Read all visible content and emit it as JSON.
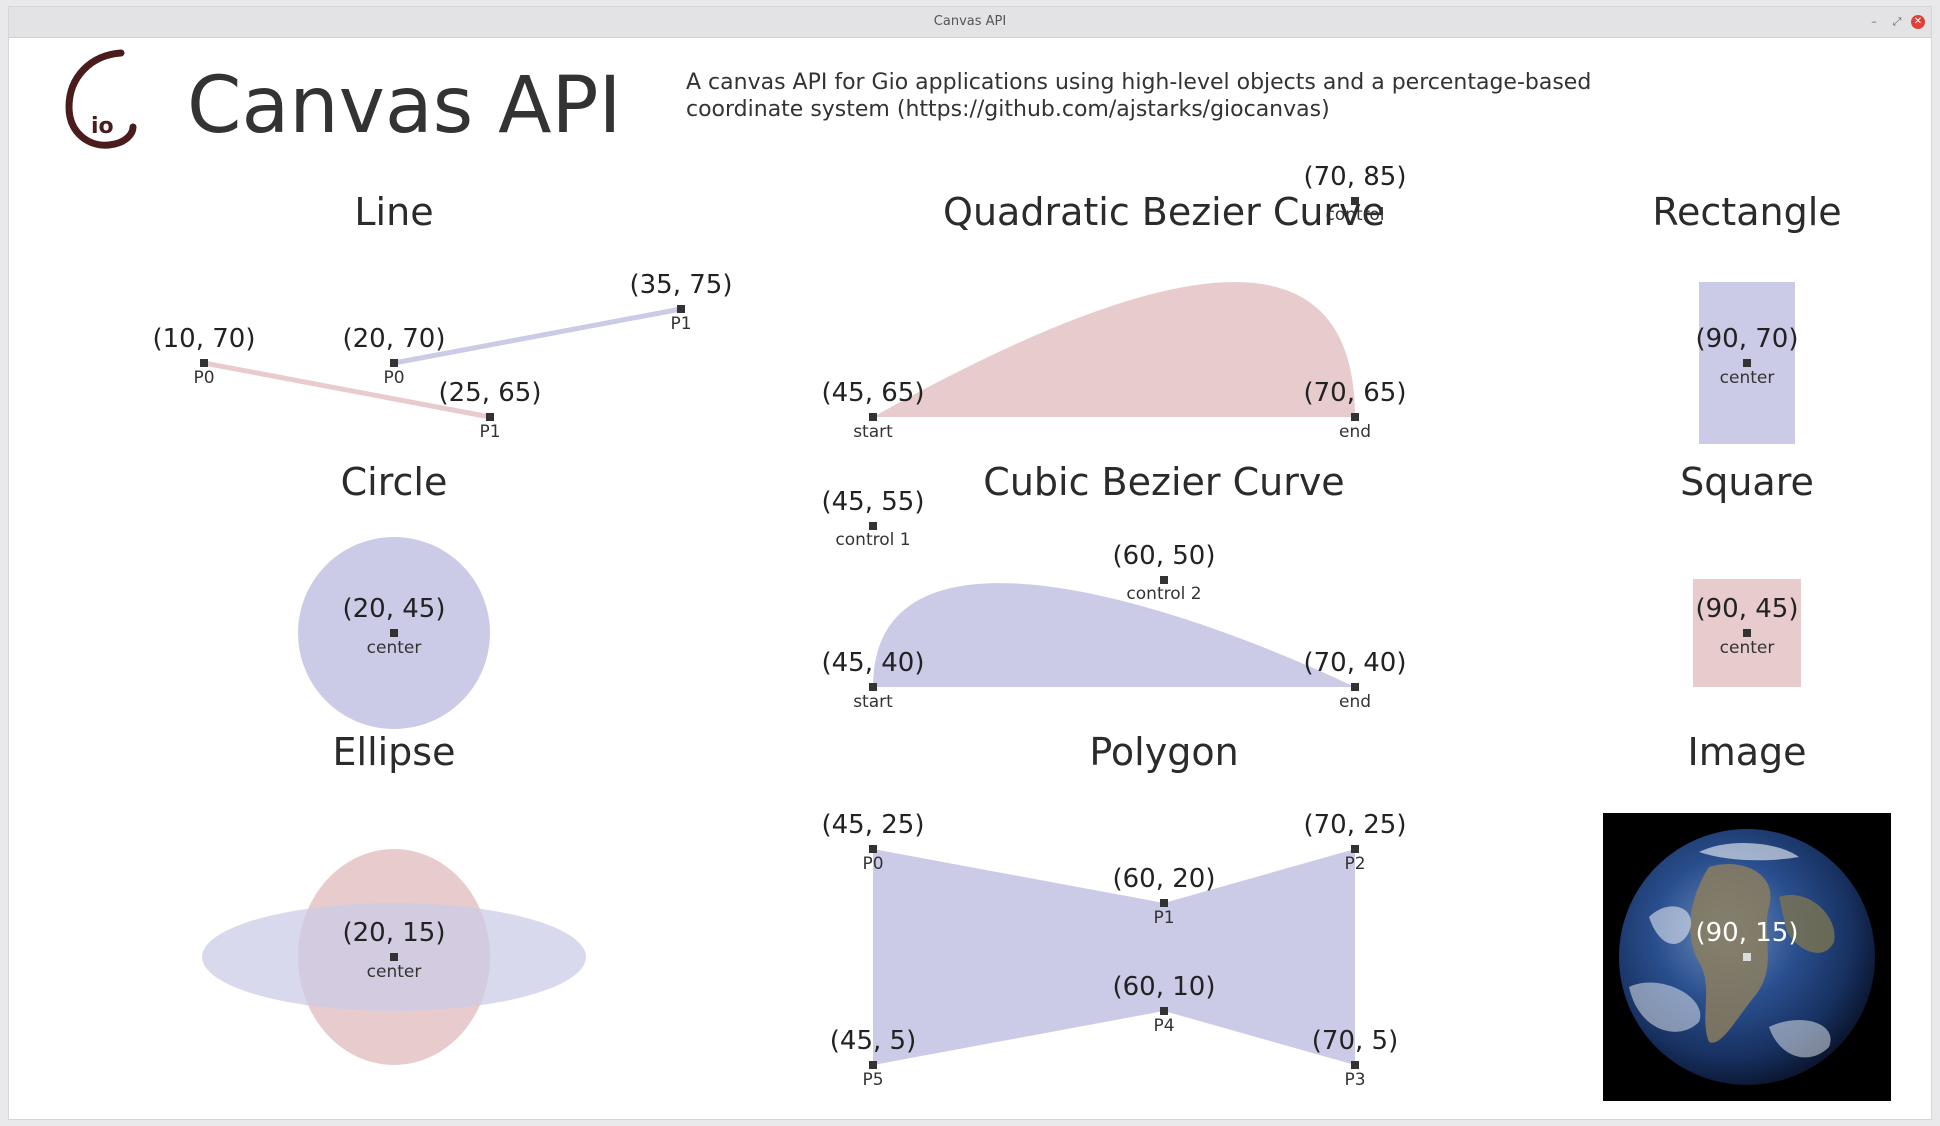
{
  "window": {
    "title": "Canvas API",
    "controls": {
      "minimize": "–",
      "maximize": "⤢",
      "close": "✕"
    }
  },
  "header": {
    "logo_icon": "gio-logo",
    "title": "Canvas API",
    "description_line1": "A canvas API for Gio applications using high-level objects and a percentage-based",
    "description_line2": "coordinate system (https://github.com/ajstarks/giocanvas)"
  },
  "colors": {
    "blue_fill": "#cbcbe8",
    "red_fill": "#e8cccd",
    "marker": "#333333",
    "logo": "#4a1c1c"
  },
  "line": {
    "title": "Line",
    "a_p0": "(10, 70)",
    "a_p0_label": "P0",
    "a_p1": "(25, 65)",
    "a_p1_label": "P1",
    "b_p0": "(20, 70)",
    "b_p0_label": "P0",
    "b_p1": "(35, 75)",
    "b_p1_label": "P1"
  },
  "circle": {
    "title": "Circle",
    "coord": "(20, 45)",
    "label": "center"
  },
  "ellipse": {
    "title": "Ellipse",
    "coord": "(20, 15)",
    "label": "center"
  },
  "quadratic": {
    "title": "Quadratic Bezier Curve",
    "control": "(70, 85)",
    "control_label": "control",
    "start": "(45, 65)",
    "start_label": "start",
    "end": "(70, 65)",
    "end_label": "end"
  },
  "cubic": {
    "title": "Cubic Bezier Curve",
    "control1": "(45, 55)",
    "control1_label": "control 1",
    "control2": "(60, 50)",
    "control2_label": "control 2",
    "start": "(45, 40)",
    "start_label": "start",
    "end": "(70, 40)",
    "end_label": "end"
  },
  "polygon": {
    "title": "Polygon",
    "p0": "(45, 25)",
    "p0_label": "P0",
    "p1": "(60, 20)",
    "p1_label": "P1",
    "p2": "(70, 25)",
    "p2_label": "P2",
    "p3": "(70, 5)",
    "p3_label": "P3",
    "p4": "(60, 10)",
    "p4_label": "P4",
    "p5": "(45, 5)",
    "p5_label": "P5"
  },
  "rectangle": {
    "title": "Rectangle",
    "coord": "(90, 70)",
    "label": "center"
  },
  "square": {
    "title": "Square",
    "coord": "(90, 45)",
    "label": "center"
  },
  "image": {
    "title": "Image",
    "coord": "(90, 15)",
    "subject": "earth-globe"
  }
}
